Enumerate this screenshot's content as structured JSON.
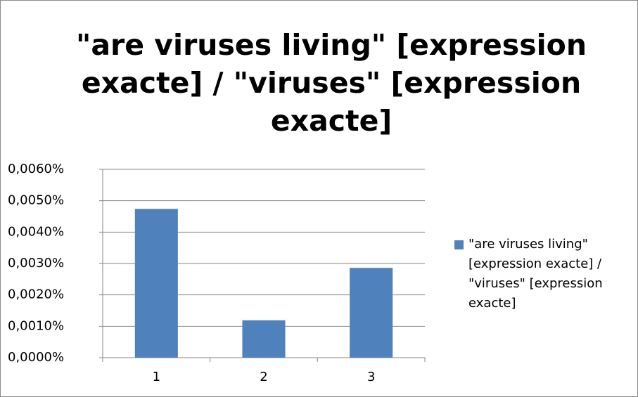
{
  "chart_data": {
    "type": "bar",
    "title": "\"are viruses living\" [expression exacte] / \"viruses\" [expression exacte]",
    "categories": [
      "1",
      "2",
      "3"
    ],
    "series": [
      {
        "name": "\"are viruses living\" [expression exacte] / \"viruses\" [expression exacte]",
        "color": "#4f81bd",
        "values": [
          0.00474,
          0.00119,
          0.00286
        ]
      }
    ],
    "ylim": [
      0,
      0.006
    ],
    "yticks": [
      {
        "value": 0,
        "label": "0,0000%"
      },
      {
        "value": 0.001,
        "label": "0,0010%"
      },
      {
        "value": 0.002,
        "label": "0,0020%"
      },
      {
        "value": 0.003,
        "label": "0,0030%"
      },
      {
        "value": 0.004,
        "label": "0,0040%"
      },
      {
        "value": 0.005,
        "label": "0,0050%"
      },
      {
        "value": 0.006,
        "label": "0,0060%"
      }
    ],
    "grid": true,
    "legend": "right"
  }
}
